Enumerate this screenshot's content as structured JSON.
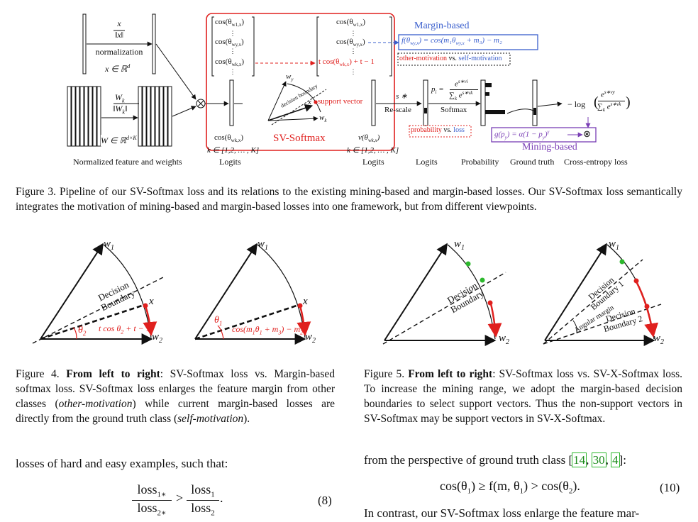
{
  "figure3": {
    "labels": {
      "norm_frac_num": "x",
      "norm_frac_den": "‖x‖",
      "normalization": "normalization",
      "x_space": "x ∈ ℝ",
      "x_space_sup": "d",
      "w_frac_num": "W",
      "w_frac_num_sub": "k",
      "w_frac_den": "‖W",
      "w_frac_den_sub": "k",
      "w_frac_den_end": "‖",
      "w_space": "W ∈ ℝ",
      "w_space_sup": "d×K",
      "bottom_labels": [
        "Normalized feature and weights",
        "Logits",
        "Logits",
        "Logits",
        "Probability",
        "Ground truth",
        "Cross-entropy loss"
      ],
      "cos_left": [
        "cos(θ",
        "cos(θ",
        "cos(θ"
      ],
      "cos_left_sub": [
        "w1,x",
        "wy,x",
        "wk,x"
      ],
      "cos_right": [
        "cos(θ",
        "cos(θ",
        "t cos(θ"
      ],
      "cos_right_sub": [
        "w1,x",
        "wy,x",
        "wk,x"
      ],
      "cos_right_end": [
        ")",
        ")",
        ") + t − 1"
      ],
      "logits_cos": "cos(θ",
      "logits_cos_sub": "wk,x",
      "logits_k": "k ∈ [1,2, … , K]",
      "logits_v": "v(θ",
      "logits_v_sub": "wk,x",
      "logits_k2": "k ∈ [1,2, … , K]",
      "sv_softmax": "SV-Softmax",
      "margin_based": "Margin-based",
      "margin_formula": "f(θ",
      "margin_formula_rest": ") = cos(m₁θ",
      "margin_formula_end": " + m₃) − m₂",
      "other_motivation": "other-motivation",
      "vs": "vs.",
      "self_motivation": "self-motivation",
      "support_vector": "support vector",
      "decision_boundary": "decision boundary",
      "wy": "w",
      "wy_sub": "y",
      "wk": "w",
      "wk_sub": "k",
      "x": "x",
      "s_star": "s ∗",
      "rescale": "Re-scale",
      "softmax": "Softmax",
      "pi": "p",
      "pi_sub": "i",
      "pi_eq": " = ",
      "exp_num": "e",
      "exp_num_sup": "s∗vi",
      "exp_den": "∑",
      "exp_den_sub": "k",
      "exp_den_e": " e",
      "exp_den_sup": "s∗vk",
      "probability": "probability",
      "loss": "loss",
      "ce_log": "− log",
      "ce_num": "e",
      "ce_num_sup": "s∗vy",
      "ce_den": "∑",
      "ce_den_sub": "k",
      "ce_den_e": " e",
      "ce_den_sup": "s∗vk",
      "g_formula": "g(p",
      "g_formula_sub": "y",
      "g_formula_rest": ") = α(1 − p",
      "g_formula_rest_sub": "y",
      "g_formula_end": ")",
      "g_formula_sup": "γ",
      "otimes": "⊗",
      "mining_based": "Mining-based"
    },
    "caption": "Figure 3. Pipeline of our SV-Softmax loss and its relations to the existing mining-based and margin-based losses. Our SV-Softmax loss semantically integrates the motivation of mining-based and margin-based losses into one framework, but from different viewpoints."
  },
  "figure4": {
    "labels": {
      "w1": "w",
      "w1_sub": "1",
      "w2": "w",
      "w2_sub": "2",
      "decision": "Decision",
      "boundary": "Boundary",
      "x": "x",
      "theta2": "θ",
      "theta2_sub": "2",
      "tcos": "t cos θ",
      "tcos_sub": "2",
      "tcos_rest": " + t − 1",
      "theta1": "θ",
      "theta1_sub": "1",
      "cosm": "cos(m",
      "cosm_sub1": "1",
      "cosm_mid": "θ",
      "cosm_sub2": "1",
      "cosm_rest": " + m",
      "cosm_sub3": "3",
      "cosm_end": ") − m",
      "cosm_sub4": "2"
    },
    "caption_prefix": "Figure 4. ",
    "caption_bold": "From left to right",
    "caption_a": ": SV-Softmax loss vs. Margin-based softmax loss. SV-Softmax loss enlarges the feature margin from other classes (",
    "caption_italic1": "other-motivation",
    "caption_b": ") while current margin-based losses are directly from the ground truth class (",
    "caption_italic2": "self-motivation",
    "caption_c": ")."
  },
  "figure5": {
    "labels": {
      "w1": "w",
      "w1_sub": "1",
      "w2": "w",
      "w2_sub": "2",
      "decision": "Decision",
      "boundary": "Boundary",
      "boundary1": "Boundary 1",
      "boundary2": "Boundary 2",
      "angular_margin": "Angular margin"
    },
    "caption_prefix": "Figure 5. ",
    "caption_bold": "From left to right",
    "caption_a": ": SV-Softmax loss vs. SV-X-Softmax loss. To increase the mining range, we adopt the margin-based decision boundaries to select support vectors. Thus the non-support vectors in SV-Softmax may be support vectors in SV-X-Softmax."
  },
  "left_column": {
    "text": "losses of hard and easy examples, such that:",
    "eq_num_left_top": "loss",
    "eq_num_left_top_sub": "1∗",
    "eq_num_left_bot": "loss",
    "eq_num_left_bot_sub": "2∗",
    "eq_gt": ">",
    "eq_num_right_top": "loss",
    "eq_num_right_top_sub": "1",
    "eq_num_right_bot": "loss",
    "eq_num_right_bot_sub": "2",
    "eq_period": ".",
    "eq_number": "(8)"
  },
  "right_column": {
    "text": "from the perspective of ground truth class",
    "cite_open": " [",
    "cites": [
      "14",
      "30",
      "4"
    ],
    "cite_close": "]:",
    "eq": "cos(θ",
    "eq_sub1": "1",
    "eq_mid": ") ≥ f(m, θ",
    "eq_sub2": "1",
    "eq_mid2": ") > cos(θ",
    "eq_sub3": "2",
    "eq_end": ").",
    "eq_number": "(10)",
    "text2": "In contrast, our SV-Softmax loss enlarge the feature mar-"
  },
  "colors": {
    "red": "#e0201e",
    "blue": "#3a5fcd",
    "purple": "#7a3fb5",
    "green": "#2db82d"
  }
}
